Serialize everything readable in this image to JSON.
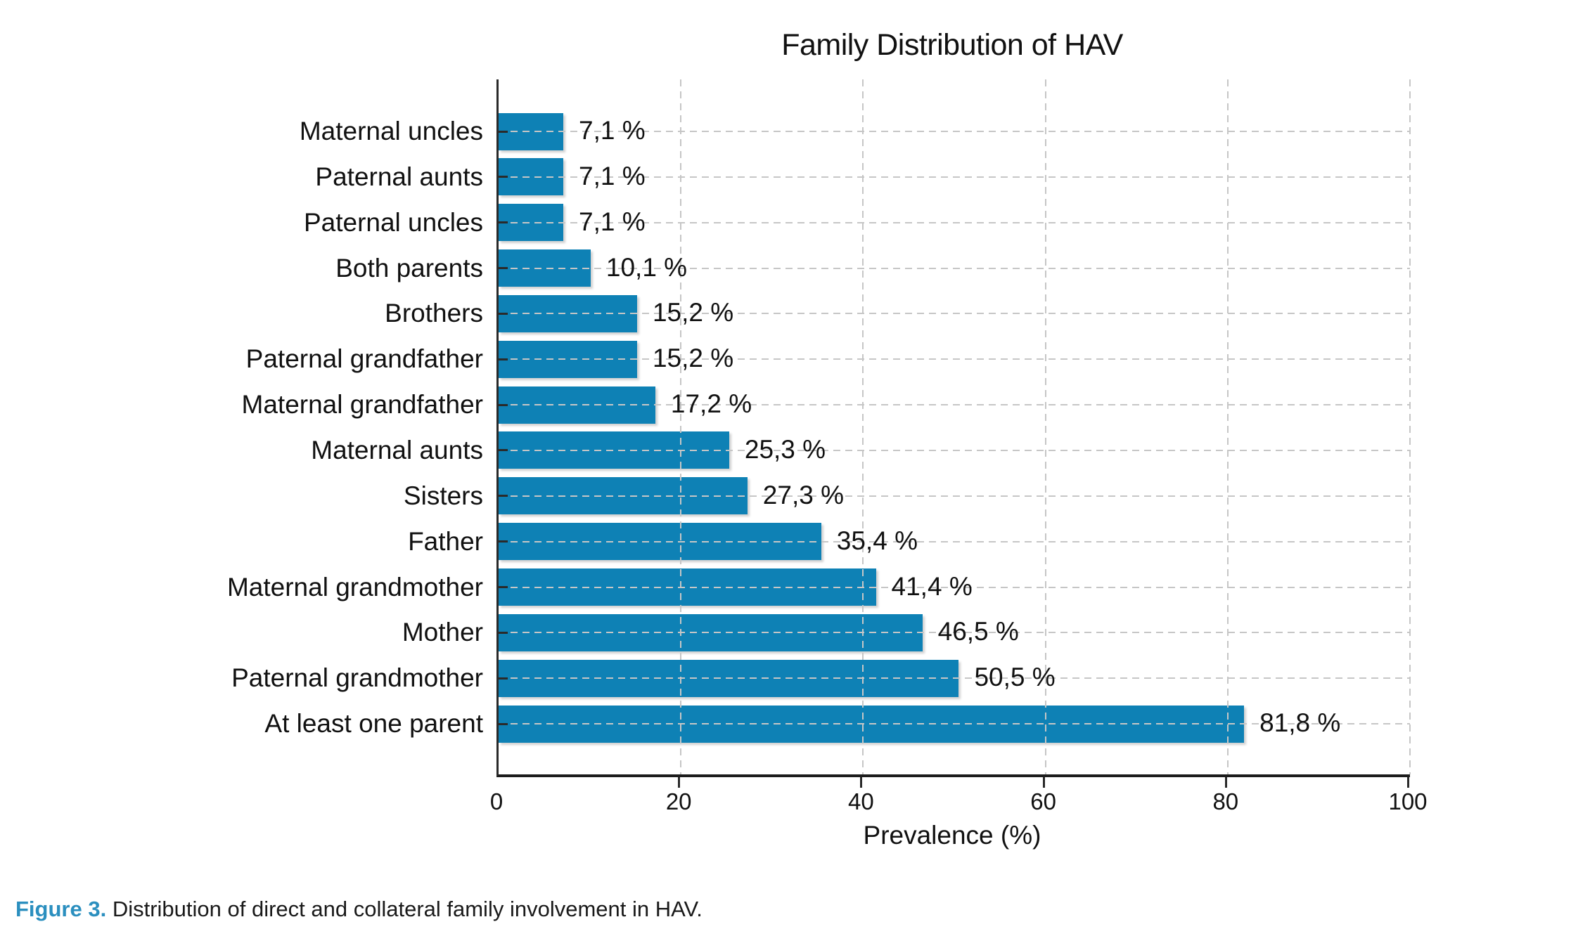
{
  "chart_data": {
    "type": "bar",
    "orientation": "horizontal",
    "title": "Family Distribution of HAV",
    "xlabel": "Prevalence (%)",
    "xlim": [
      0,
      100
    ],
    "xticks": [
      0,
      20,
      40,
      60,
      80,
      100
    ],
    "grid": {
      "style": "dashed",
      "color": "#c6c6c6",
      "vertical": true,
      "horizontal": true
    },
    "bar_color": "#0e81b5",
    "legend_position": "none",
    "rows": [
      {
        "label": "Maternal uncles",
        "value": 7.1,
        "value_label": "7,1 %"
      },
      {
        "label": "Paternal aunts",
        "value": 7.1,
        "value_label": "7,1 %"
      },
      {
        "label": "Paternal uncles",
        "value": 7.1,
        "value_label": "7,1 %"
      },
      {
        "label": "Both parents",
        "value": 10.1,
        "value_label": "10,1 %"
      },
      {
        "label": "Brothers",
        "value": 15.2,
        "value_label": "15,2 %"
      },
      {
        "label": "Paternal grandfather",
        "value": 15.2,
        "value_label": "15,2 %"
      },
      {
        "label": "Maternal grandfather",
        "value": 17.2,
        "value_label": "17,2 %"
      },
      {
        "label": "Maternal aunts",
        "value": 25.3,
        "value_label": "25,3 %"
      },
      {
        "label": "Sisters",
        "value": 27.3,
        "value_label": "27,3 %"
      },
      {
        "label": "Father",
        "value": 35.4,
        "value_label": "35,4 %"
      },
      {
        "label": "Maternal grandmother",
        "value": 41.4,
        "value_label": "41,4 %"
      },
      {
        "label": "Mother",
        "value": 46.5,
        "value_label": "46,5 %"
      },
      {
        "label": "Paternal grandmother",
        "value": 50.5,
        "value_label": "50,5 %"
      },
      {
        "label": "At least one parent",
        "value": 81.8,
        "value_label": "81,8 %"
      }
    ]
  },
  "figure_caption": {
    "prefix": "Figure 3.",
    "text": " Distribution of direct and collateral family involvement in HAV.",
    "prefix_color": "#2b8fbf"
  }
}
